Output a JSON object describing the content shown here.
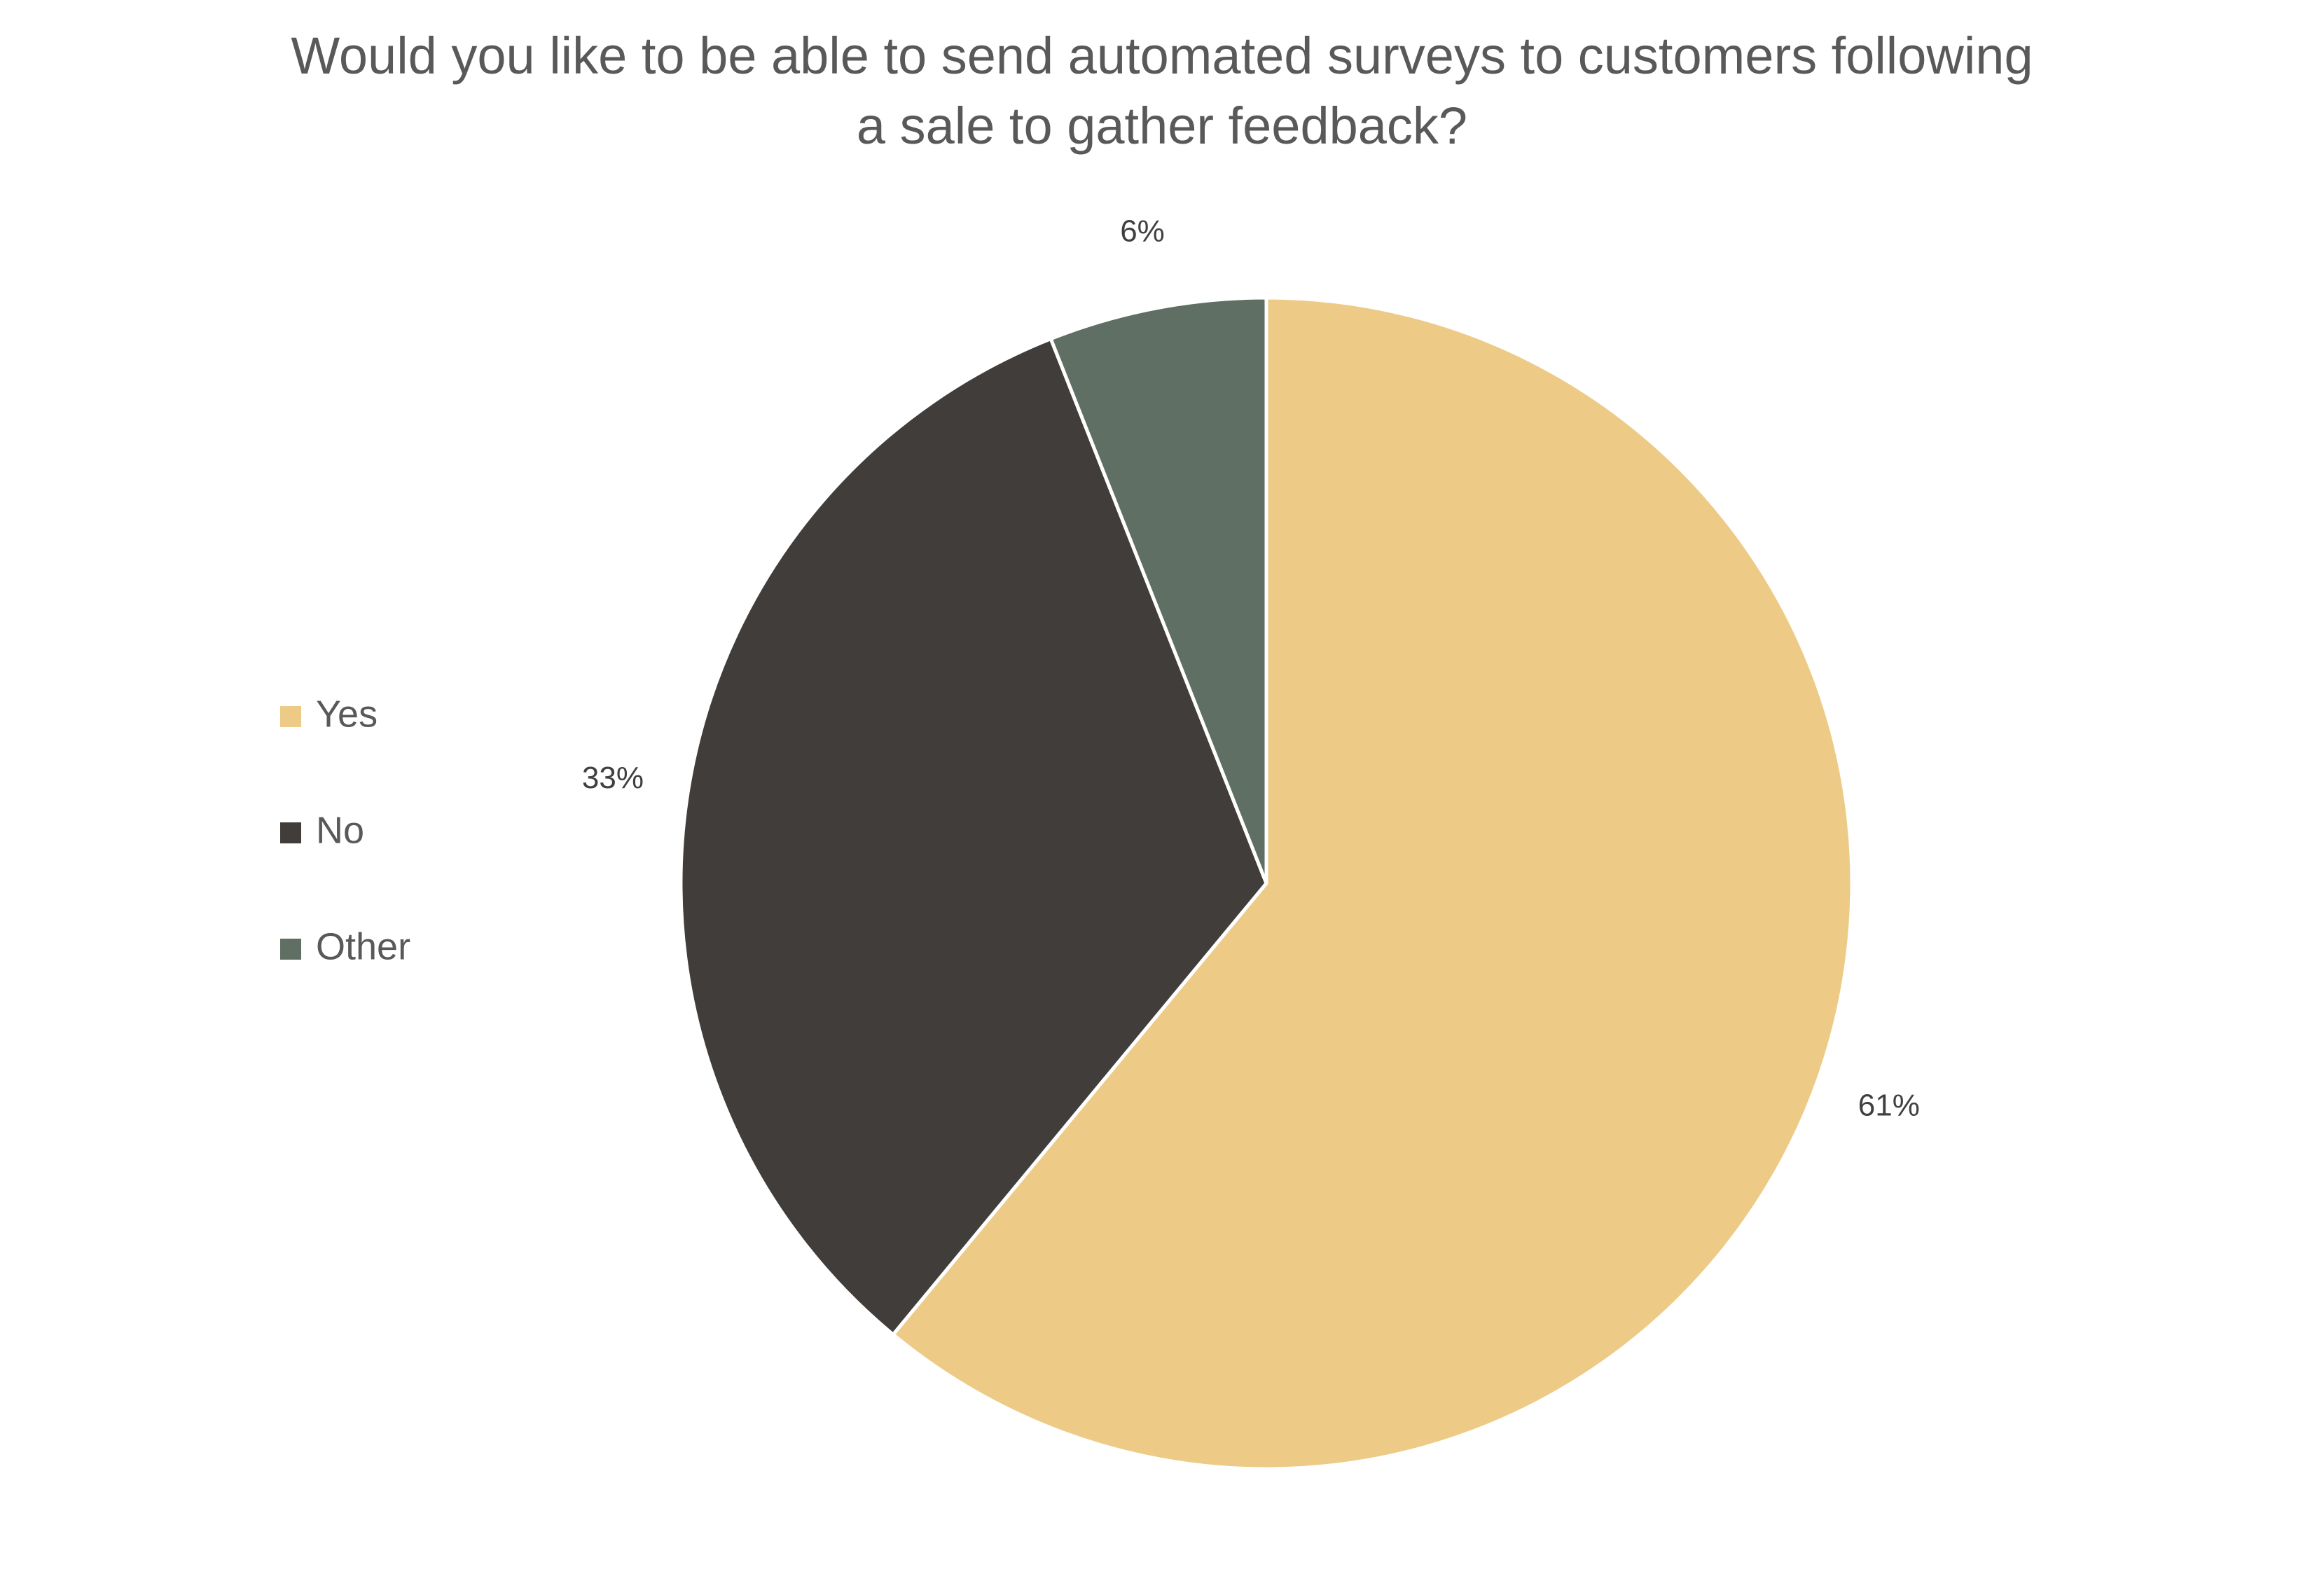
{
  "chart_data": {
    "type": "pie",
    "title": "Would you like to be able to send automated surveys to customers following a sale to gather feedback?",
    "categories": [
      "Yes",
      "No",
      "Other"
    ],
    "values": [
      61,
      33,
      6
    ],
    "value_labels": [
      "61%",
      "33%",
      "6%"
    ],
    "colors": [
      "#edcb87",
      "#403d3a",
      "#5f6f63"
    ],
    "legend": "left"
  }
}
